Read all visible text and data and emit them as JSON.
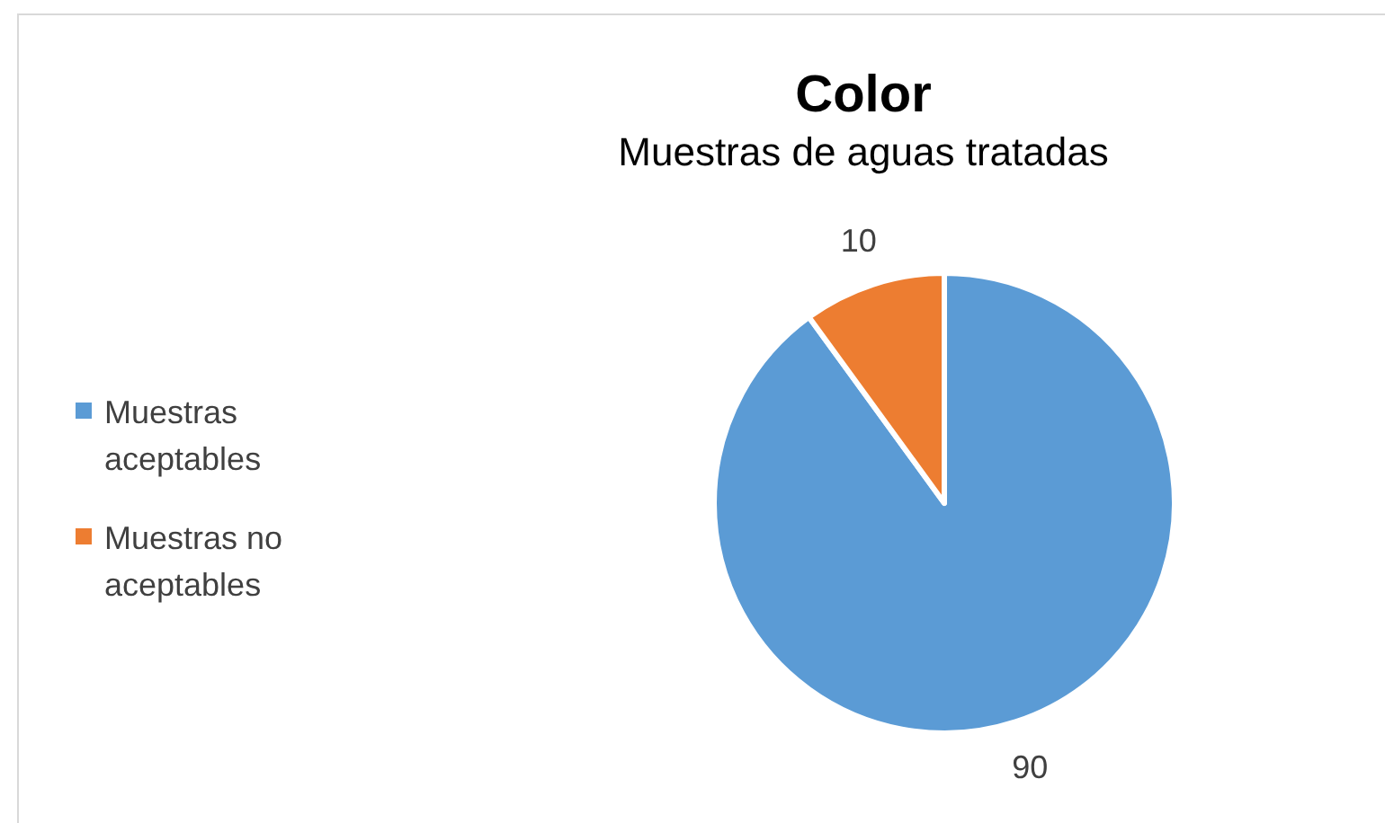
{
  "chart_data": {
    "type": "pie",
    "title": "Color",
    "subtitle": "Muestras de aguas tratadas",
    "categories": [
      "Muestras aceptables",
      "Muestras no aceptables"
    ],
    "values": [
      90,
      10
    ],
    "colors": [
      "#5b9bd5",
      "#ed7d31"
    ],
    "data_labels": true,
    "legend": "left"
  }
}
